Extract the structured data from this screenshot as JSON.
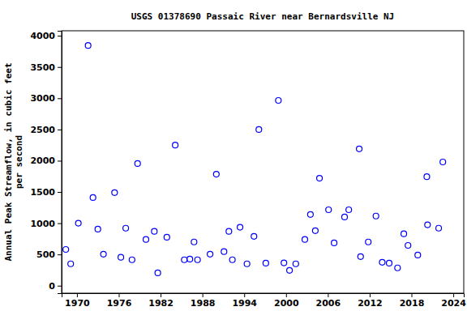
{
  "chart_data": {
    "type": "scatter",
    "title": "USGS 01378690 Passaic River near Bernardsville NJ",
    "ylabel": [
      "Annual Peak Streamflow, in cubic feet",
      "per second"
    ],
    "color": "#0000ff",
    "marker": "circle",
    "grid": false,
    "xlim": [
      1967.8,
      2025.5
    ],
    "xticks": [
      1970,
      1976,
      1982,
      1988,
      1994,
      2000,
      2006,
      2012,
      2018,
      2024
    ],
    "ylim": [
      -120,
      4080
    ],
    "yticks": [
      0,
      500,
      1000,
      1500,
      2000,
      2500,
      3000,
      3500,
      4000
    ],
    "x": [
      1968.4,
      1969.1,
      1970.2,
      1971.6,
      1972.3,
      1973.0,
      1973.8,
      1975.4,
      1976.3,
      1977.0,
      1977.9,
      1978.7,
      1979.9,
      1981.1,
      1981.6,
      1982.9,
      1984.1,
      1985.4,
      1986.2,
      1986.8,
      1987.3,
      1989.1,
      1990.0,
      1991.1,
      1991.8,
      1992.3,
      1993.4,
      1994.4,
      1995.4,
      1996.1,
      1997.1,
      1998.9,
      1999.7,
      2000.5,
      2001.4,
      2002.7,
      2003.5,
      2004.2,
      2004.8,
      2006.1,
      2006.9,
      2008.4,
      2009.0,
      2010.5,
      2010.7,
      2011.8,
      2012.9,
      2013.8,
      2014.8,
      2016.0,
      2016.9,
      2017.5,
      2018.9,
      2020.2,
      2020.3,
      2021.9,
      2022.5
    ],
    "values": [
      580,
      350,
      1000,
      3845,
      1410,
      905,
      505,
      1490,
      455,
      920,
      415,
      1955,
      740,
      870,
      205,
      775,
      2250,
      415,
      425,
      700,
      415,
      505,
      1785,
      545,
      870,
      415,
      935,
      350,
      790,
      2500,
      360,
      2965,
      365,
      245,
      350,
      740,
      1140,
      880,
      1720,
      1215,
      685,
      1100,
      1215,
      2190,
      465,
      700,
      1115,
      375,
      360,
      285,
      830,
      645,
      490,
      1745,
      975,
      920,
      1980
    ]
  }
}
